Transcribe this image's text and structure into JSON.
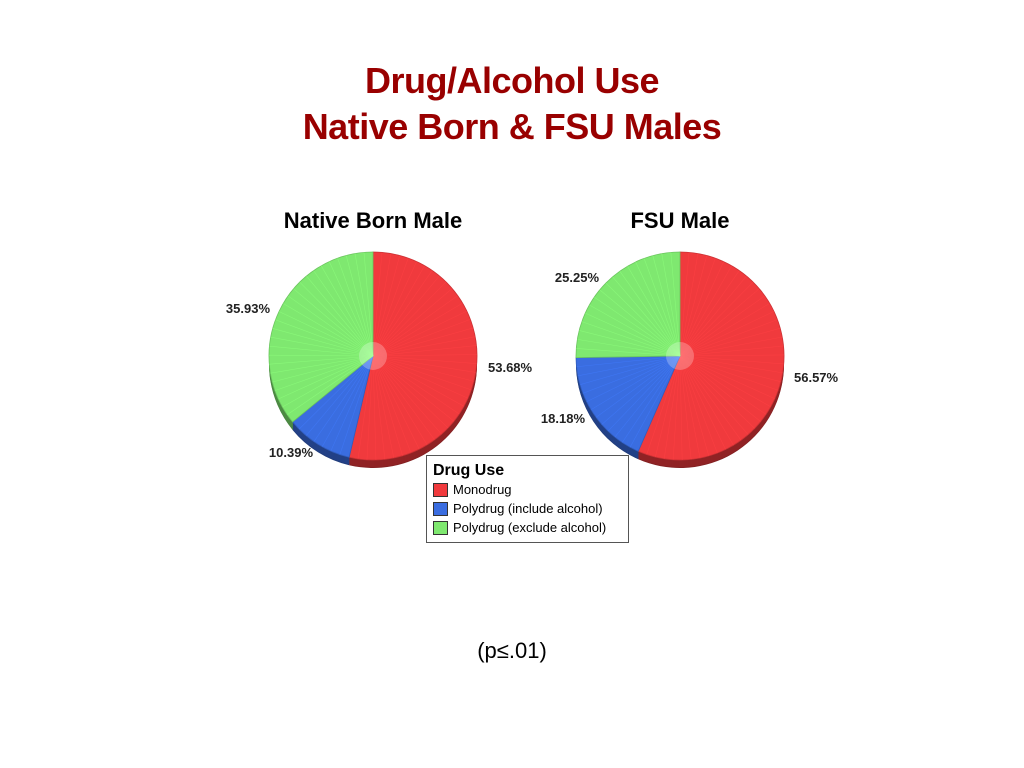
{
  "slide": {
    "title_line1": "Drug/Alcohol Use",
    "title_line2": "Native Born & FSU Males",
    "footnote": "(p≤.01)"
  },
  "legend": {
    "title": "Drug Use",
    "items": [
      {
        "label": "Monodrug",
        "color": "#f03a3d"
      },
      {
        "label": "Polydrug (include alcohol)",
        "color": "#3a6de0"
      },
      {
        "label": "Polydrug (exclude alcohol)",
        "color": "#7fe870"
      }
    ]
  },
  "chart_data": [
    {
      "type": "pie",
      "title": "Native Born Male",
      "categories": [
        "Monodrug",
        "Polydrug (include alcohol)",
        "Polydrug (exclude alcohol)"
      ],
      "values": [
        53.68,
        10.39,
        35.93
      ],
      "labels": [
        "53.68%",
        "10.39%",
        "35.93%"
      ],
      "colors": [
        "#f03a3d",
        "#3a6de0",
        "#7fe870"
      ]
    },
    {
      "type": "pie",
      "title": "FSU Male",
      "categories": [
        "Monodrug",
        "Polydrug (include alcohol)",
        "Polydrug (exclude alcohol)"
      ],
      "values": [
        56.57,
        18.18,
        25.25
      ],
      "labels": [
        "56.57%",
        "18.18%",
        "25.25%"
      ],
      "colors": [
        "#f03a3d",
        "#3a6de0",
        "#7fe870"
      ]
    }
  ]
}
